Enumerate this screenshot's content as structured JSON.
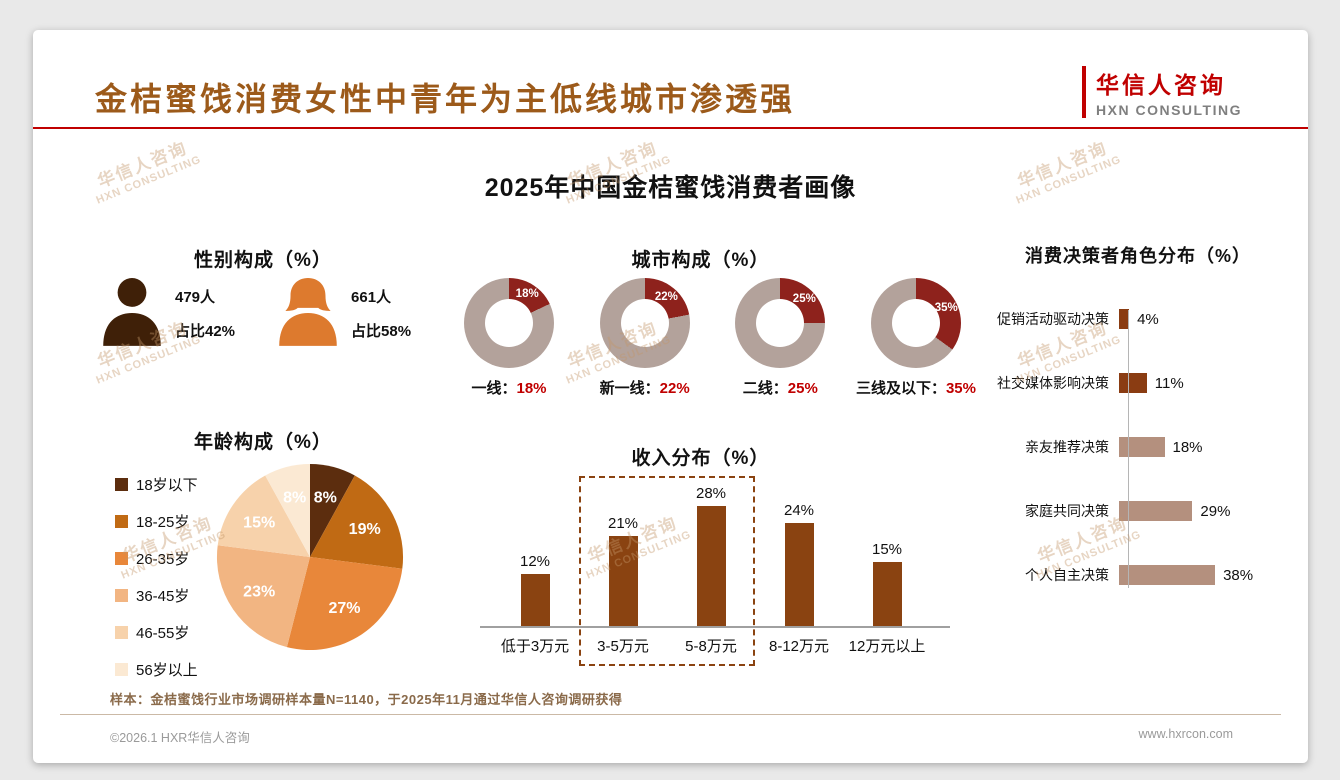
{
  "page": {
    "header": {
      "title": "金桔蜜饯消费女性中青年为主低线城市渗透强",
      "logo": {
        "cn": "华信人咨询",
        "en": "HXN CONSULTING"
      }
    },
    "main_title": "2025年中国金桔蜜饯消费者画像",
    "watermark": {
      "cn": "华信人咨询",
      "en": "HXN CONSULTING"
    },
    "footnote": "样本：金桔蜜饯行业市场调研样本量N=1140，于2025年11月通过华信人咨询调研获得",
    "footer": {
      "copyright": "©2026.1 HXR华信人咨询",
      "website": "www.hxrcon.com"
    }
  },
  "colors": {
    "accent_red": "#c00000",
    "title_brown": "#9c5a1a",
    "bar_brown": "#8a4311",
    "donut_slice": "#8e221c",
    "donut_rest": "#b3a29b",
    "hbar_light": "#b4907e"
  },
  "chart_data": [
    {
      "id": "gender",
      "type": "pictogram",
      "title": "性别构成（%）",
      "items": [
        {
          "gender": "男",
          "count": "479人",
          "share": "占比42%",
          "color": "#3f2008"
        },
        {
          "gender": "女",
          "count": "661人",
          "share": "占比58%",
          "color": "#dd7a2e"
        }
      ]
    },
    {
      "id": "age",
      "type": "pie",
      "title": "年龄构成（%）",
      "categories": [
        "18岁以下",
        "18-25岁",
        "26-35岁",
        "36-45岁",
        "46-55岁",
        "56岁以上"
      ],
      "values": [
        8,
        19,
        27,
        23,
        15,
        8
      ],
      "colors": [
        "#5c2d0e",
        "#c06a14",
        "#e8873a",
        "#f2b582",
        "#f7d2ab",
        "#fbe9d3"
      ],
      "legend_position": "left",
      "label_color": "#ffffff"
    },
    {
      "id": "city",
      "type": "donut",
      "title": "城市构成（%）",
      "items": [
        {
          "label": "一线",
          "value": 18
        },
        {
          "label": "新一线",
          "value": 22
        },
        {
          "label": "二线",
          "value": 25
        },
        {
          "label": "三线及以下",
          "value": 35
        }
      ],
      "slice_color": "#8e221c",
      "rest_color": "#b3a29b",
      "value_color": "#c00000"
    },
    {
      "id": "income",
      "type": "bar",
      "title": "收入分布（%）",
      "categories": [
        "低于3万元",
        "3-5万元",
        "5-8万元",
        "8-12万元",
        "12万元以上"
      ],
      "values": [
        12,
        21,
        28,
        24,
        15
      ],
      "bar_color": "#8a4311",
      "highlight_indices": [
        1,
        2
      ],
      "ylim": [
        0,
        30
      ]
    },
    {
      "id": "decision",
      "type": "hbar",
      "title": "消费决策者角色分布（%）",
      "categories": [
        "促销活动驱动决策",
        "社交媒体影响决策",
        "亲友推荐决策",
        "家庭共同决策",
        "个人自主决策"
      ],
      "values": [
        4,
        11,
        18,
        29,
        38
      ],
      "bar_colors": [
        "#8a3c12",
        "#8a3c12",
        "#b4907e",
        "#b4907e",
        "#b4907e"
      ],
      "xlim": [
        0,
        40
      ]
    }
  ]
}
